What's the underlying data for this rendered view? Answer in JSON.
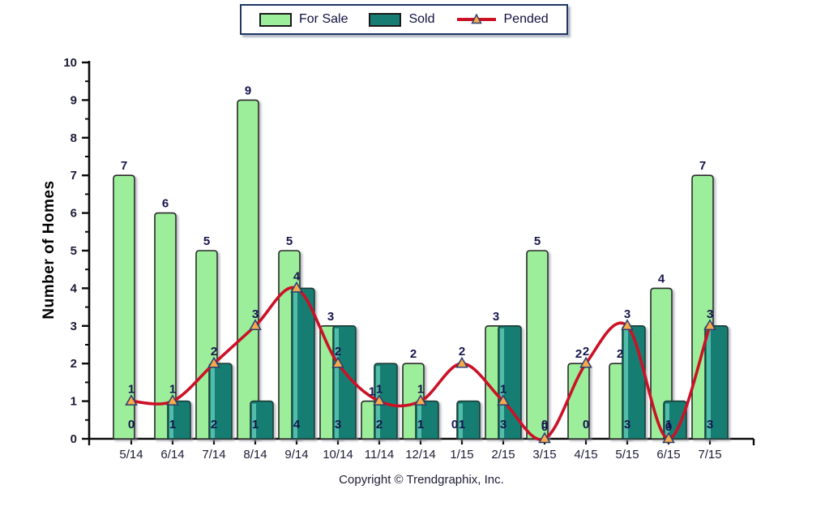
{
  "legend": {
    "items": [
      {
        "label": "For Sale",
        "swatch": "for-sale"
      },
      {
        "label": "Sold",
        "swatch": "sold"
      },
      {
        "label": "Pended",
        "swatch": "pended-line"
      }
    ]
  },
  "ylabel": "Number of Homes",
  "copyright": "Copyright © Trendgraphix, Inc.",
  "chart_data": {
    "type": "bar",
    "subtype": "grouped-bars-with-line-overlay",
    "categories": [
      "5/14",
      "6/14",
      "7/14",
      "8/14",
      "9/14",
      "10/14",
      "11/14",
      "12/14",
      "1/15",
      "2/15",
      "3/15",
      "4/15",
      "5/15",
      "6/15",
      "7/15"
    ],
    "series": [
      {
        "name": "For Sale",
        "type": "bar",
        "values": [
          7,
          6,
          5,
          9,
          5,
          3,
          1,
          2,
          0,
          3,
          5,
          2,
          2,
          4,
          7
        ]
      },
      {
        "name": "Sold",
        "type": "bar",
        "values": [
          0,
          1,
          2,
          1,
          4,
          3,
          2,
          1,
          1,
          3,
          0,
          0,
          3,
          1,
          3
        ]
      },
      {
        "name": "Pended",
        "type": "line",
        "values": [
          1,
          1,
          2,
          3,
          4,
          2,
          1,
          1,
          2,
          1,
          0,
          2,
          3,
          0,
          3
        ]
      }
    ],
    "ylabel": "Number of Homes",
    "xlabel": "",
    "ylim": [
      0,
      10
    ],
    "y_major_step": 1,
    "y_minor_step": 0.5,
    "grid": "off",
    "legend_position": "top-center",
    "data_labels": "on",
    "colors": {
      "for_sale_fill": "#9cee9b",
      "for_sale_stroke": "#2b2b2b",
      "sold_fill": "#177d73",
      "sold_highlight": "#52bca8",
      "sold_stroke": "#1e3a36",
      "pended_line": "#cc1126",
      "marker_fill": "#f8a94c",
      "marker_stroke": "#2b3f6e",
      "value_label": "#15154e",
      "axis": "#0a0a0a",
      "tick_label": "#1b1b35"
    }
  }
}
